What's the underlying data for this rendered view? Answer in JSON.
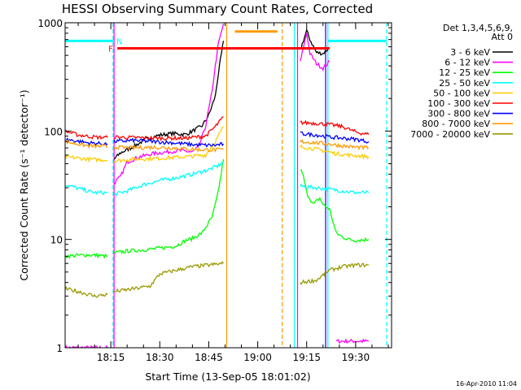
{
  "chart_data": {
    "type": "line",
    "title": "HESSI Observing Summary Count Rates, Corrected",
    "xlabel": "Start Time (13-Sep-05 18:01:02)",
    "ylabel": "Corrected Count Rate (s⁻¹ detector⁻¹)",
    "x_unit": "minutes after 18:00 UT",
    "xlim": [
      1.0,
      101.0
    ],
    "ylim": [
      1,
      1000
    ],
    "y_scale": "log",
    "grid": false,
    "legend_position": "right",
    "legend_header": [
      "Det 1,3,4,5,6,9,",
      "Att 0"
    ],
    "x_ticks": [
      {
        "t": 15,
        "label": "18:15"
      },
      {
        "t": 30,
        "label": "18:30"
      },
      {
        "t": 45,
        "label": "18:45"
      },
      {
        "t": 60,
        "label": "19:00"
      },
      {
        "t": 75,
        "label": "19:15"
      },
      {
        "t": 90,
        "label": "19:30"
      }
    ],
    "y_ticks": [
      {
        "v": 1,
        "label": "1"
      },
      {
        "v": 10,
        "label": "10"
      },
      {
        "v": 100,
        "label": "100"
      },
      {
        "v": 1000,
        "label": "1000"
      }
    ],
    "timestamp": "16-Apr-2010 11:04",
    "series": [
      {
        "name": "3 - 6 keV",
        "color": "#000000",
        "segments": [
          [
            [
              16,
              55
            ],
            [
              18,
              63
            ],
            [
              22,
              72
            ],
            [
              26,
              85
            ],
            [
              30,
              92
            ],
            [
              34,
              95
            ],
            [
              38,
              93
            ],
            [
              40,
              100
            ],
            [
              43,
              112
            ],
            [
              45,
              140
            ],
            [
              47,
              210
            ],
            [
              48,
              350
            ],
            [
              49.5,
              680
            ]
          ],
          [
            [
              73,
              560
            ],
            [
              75,
              840
            ],
            [
              76,
              700
            ],
            [
              78,
              530
            ],
            [
              80,
              520
            ],
            [
              82,
              590
            ]
          ]
        ]
      },
      {
        "name": "6 - 12 keV",
        "color": "#ff00ff",
        "segments": [
          [
            [
              16,
              33
            ],
            [
              18,
              38
            ],
            [
              20,
              52
            ],
            [
              24,
              58
            ],
            [
              28,
              62
            ],
            [
              32,
              64
            ],
            [
              36,
              66
            ],
            [
              40,
              64
            ],
            [
              42,
              72
            ],
            [
              44,
              110
            ],
            [
              46,
              230
            ],
            [
              47,
              400
            ],
            [
              48,
              650
            ],
            [
              49.5,
              980
            ]
          ],
          [
            [
              73,
              430
            ],
            [
              75,
              810
            ],
            [
              76,
              520
            ],
            [
              78,
              420
            ],
            [
              80,
              380
            ],
            [
              82,
              440
            ]
          ]
        ]
      },
      {
        "name": "12 - 25 keV",
        "color": "#00ff00",
        "segments": [
          [
            [
              1,
              7
            ],
            [
              8,
              7.2
            ],
            [
              14,
              7
            ]
          ],
          [
            [
              16,
              7.5
            ],
            [
              20,
              7.8
            ],
            [
              25,
              8.0
            ],
            [
              30,
              8.3
            ],
            [
              35,
              8.7
            ],
            [
              38,
              9.8
            ],
            [
              40,
              10.2
            ],
            [
              43,
              11.5
            ],
            [
              46,
              16
            ],
            [
              47.5,
              24
            ],
            [
              48.5,
              35
            ],
            [
              49.5,
              55
            ]
          ],
          [
            [
              73,
              45
            ],
            [
              74,
              38
            ],
            [
              75,
              27
            ],
            [
              77,
              21
            ],
            [
              79,
              24
            ],
            [
              80,
              21
            ],
            [
              82,
              19
            ],
            [
              84,
              11.5
            ],
            [
              86,
              10.5
            ],
            [
              88,
              10.0
            ],
            [
              90,
              9.8
            ],
            [
              94,
              10.0
            ]
          ]
        ]
      },
      {
        "name": "25 - 50 keV",
        "color": "#00ffff",
        "segments": [
          [
            [
              1,
              32
            ],
            [
              6,
              29
            ],
            [
              10,
              27
            ],
            [
              14,
              27
            ]
          ],
          [
            [
              16,
              26
            ],
            [
              20,
              28
            ],
            [
              25,
              32
            ],
            [
              30,
              35
            ],
            [
              35,
              37
            ],
            [
              40,
              40
            ],
            [
              45,
              44
            ],
            [
              48,
              48
            ],
            [
              49.5,
              52
            ]
          ],
          [
            [
              73,
              31
            ],
            [
              78,
              30
            ],
            [
              82,
              29
            ],
            [
              86,
              28
            ],
            [
              90,
              27
            ],
            [
              94,
              27
            ]
          ]
        ]
      },
      {
        "name": "50 - 100 keV",
        "color": "#ffcc00",
        "segments": [
          [
            [
              1,
              58
            ],
            [
              8,
              55
            ],
            [
              14,
              54
            ]
          ],
          [
            [
              16,
              53
            ],
            [
              22,
              55
            ],
            [
              30,
              56
            ],
            [
              38,
              58
            ],
            [
              44,
              60
            ],
            [
              47,
              80
            ],
            [
              49.5,
              110
            ]
          ],
          [
            [
              73,
              72
            ],
            [
              78,
              68
            ],
            [
              84,
              62
            ],
            [
              88,
              60
            ],
            [
              94,
              58
            ]
          ]
        ]
      },
      {
        "name": "100 - 300 keV",
        "color": "#ff0000",
        "segments": [
          [
            [
              1,
              100
            ],
            [
              5,
              92
            ],
            [
              10,
              88
            ],
            [
              14,
              87
            ]
          ],
          [
            [
              16,
              88
            ],
            [
              22,
              87
            ],
            [
              30,
              86
            ],
            [
              38,
              86
            ],
            [
              44,
              90
            ],
            [
              47,
              110
            ],
            [
              49.5,
              135
            ]
          ],
          [
            [
              73,
              120
            ],
            [
              78,
              118
            ],
            [
              82,
              115
            ],
            [
              86,
              110
            ],
            [
              90,
              98
            ],
            [
              94,
              93
            ]
          ]
        ]
      },
      {
        "name": "300 - 800 keV",
        "color": "#0000ff",
        "segments": [
          [
            [
              1,
              84
            ],
            [
              8,
              78
            ],
            [
              14,
              76
            ]
          ],
          [
            [
              16,
              80
            ],
            [
              22,
              82
            ],
            [
              28,
              80
            ],
            [
              34,
              78
            ],
            [
              40,
              75
            ],
            [
              44,
              74
            ],
            [
              47,
              74
            ],
            [
              49.5,
              76
            ]
          ],
          [
            [
              73,
              95
            ],
            [
              78,
              92
            ],
            [
              82,
              88
            ],
            [
              86,
              86
            ],
            [
              90,
              84
            ],
            [
              94,
              80
            ]
          ]
        ]
      },
      {
        "name": "800 - 7000 keV",
        "color": "#ff9900",
        "segments": [
          [
            [
              1,
              80
            ],
            [
              8,
              73
            ],
            [
              14,
              72
            ]
          ],
          [
            [
              16,
              71
            ],
            [
              22,
              70
            ],
            [
              28,
              71
            ],
            [
              34,
              70
            ],
            [
              40,
              68
            ],
            [
              44,
              67
            ],
            [
              47,
              67
            ],
            [
              49.5,
              68
            ]
          ],
          [
            [
              73,
              80
            ],
            [
              78,
              78
            ],
            [
              82,
              76
            ],
            [
              86,
              73
            ],
            [
              90,
              71
            ],
            [
              94,
              70
            ]
          ]
        ]
      },
      {
        "name": "7000 - 20000 keV",
        "color": "#999900",
        "segments": [
          [
            [
              1,
              3.5
            ],
            [
              5,
              3.3
            ],
            [
              10,
              3.0
            ],
            [
              14,
              3.1
            ]
          ],
          [
            [
              16,
              3.3
            ],
            [
              22,
              3.5
            ],
            [
              27,
              3.7
            ],
            [
              30,
              4.8
            ],
            [
              35,
              5.2
            ],
            [
              40,
              5.6
            ],
            [
              45,
              5.8
            ],
            [
              49.5,
              6.0
            ]
          ],
          [
            [
              73,
              4.0
            ],
            [
              78,
              4.2
            ],
            [
              82,
              5.2
            ],
            [
              86,
              5.6
            ],
            [
              90,
              5.8
            ],
            [
              94,
              5.8
            ]
          ]
        ]
      }
    ],
    "extra_traces": [
      {
        "color": "#ff00ff",
        "segments": [
          [
            [
              1,
              1
            ],
            [
              14,
              1
            ]
          ],
          [
            [
              84,
              1.15
            ],
            [
              94,
              1.15
            ]
          ]
        ]
      }
    ],
    "vertical_markers": [
      {
        "t": 15.7,
        "color": "#00ffff",
        "style": "dashed"
      },
      {
        "t": 16.0,
        "color": "#ff00ff",
        "style": "solid"
      },
      {
        "t": 50.5,
        "color": "#ff9900",
        "style": "solid"
      },
      {
        "t": 67.5,
        "color": "#ff9900",
        "style": "dashed"
      },
      {
        "t": 71.2,
        "color": "#00ffff",
        "style": "solid"
      },
      {
        "t": 72.2,
        "color": "#ff00ff",
        "style": "solid"
      },
      {
        "t": 80.8,
        "color": "#0000ff",
        "style": "solid"
      },
      {
        "t": 81.5,
        "color": "#00ffff",
        "style": "solid"
      },
      {
        "t": 99.5,
        "color": "#00ffff",
        "style": "dashed"
      }
    ],
    "flag_bars": [
      {
        "label": "N",
        "color": "#00ffff",
        "segments": [
          [
            1,
            15.7
          ],
          [
            81.5,
            99.5
          ]
        ],
        "value": 680
      },
      {
        "label": "F",
        "color": "#ff0000",
        "segments": [
          [
            17,
            82
          ]
        ],
        "value": 580
      },
      {
        "label": "",
        "color": "#ff9900",
        "segments": [
          [
            53,
            66
          ]
        ],
        "value": 830
      }
    ]
  }
}
